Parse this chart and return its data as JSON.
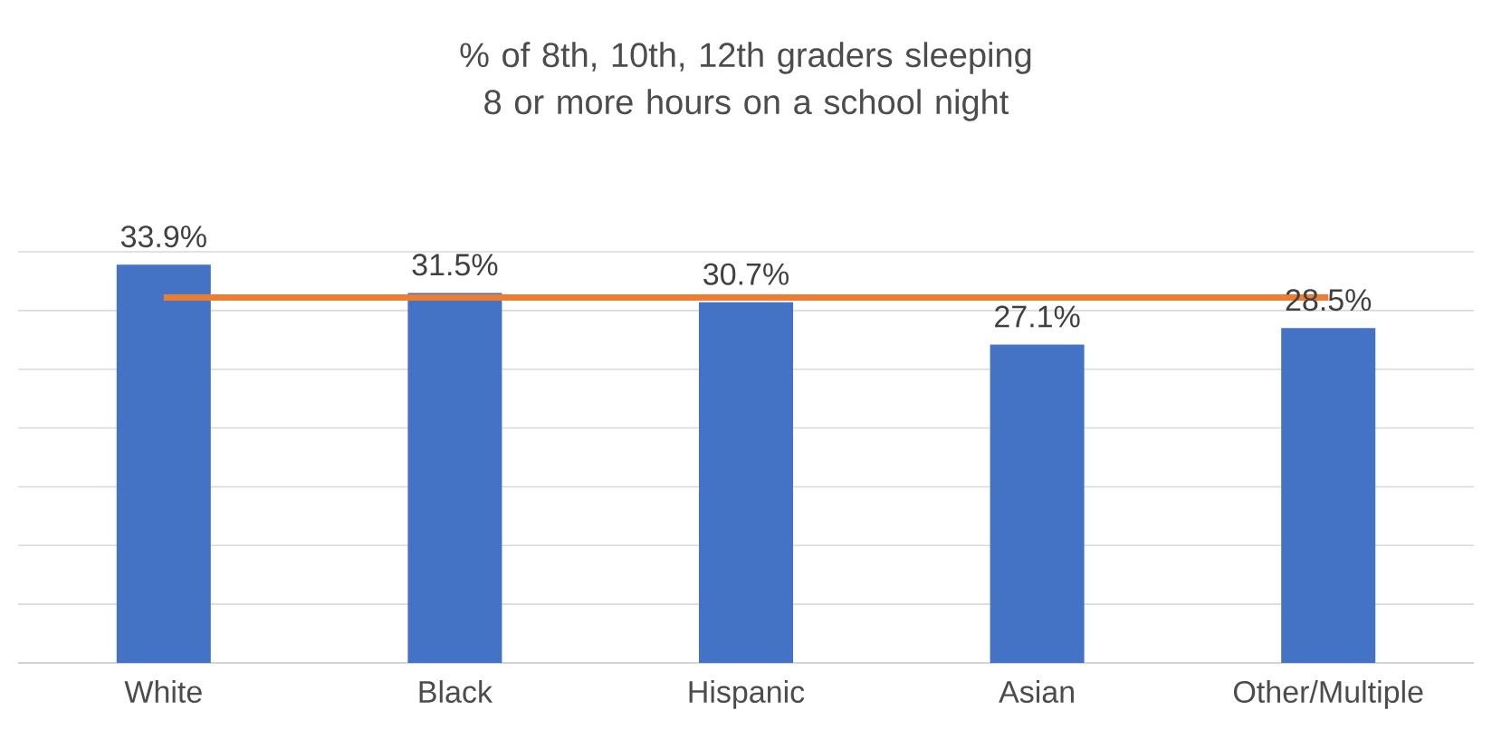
{
  "chart_data": {
    "type": "bar",
    "title": "% of 8th, 10th, 12th graders sleeping 8 or more hours on a school night",
    "categories": [
      "White",
      "Black",
      "Hispanic",
      "Asian",
      "Other/Multiple"
    ],
    "series": [
      {
        "color": "#4472c4",
        "values": [
          33.9,
          31.5,
          30.7,
          27.1,
          28.5
        ],
        "value_labels": [
          "33.9%",
          "31.5%",
          "30.7%",
          "27.1%",
          "28.5%"
        ]
      },
      {
        "type": "line",
        "color": "#ed7d31",
        "values": [
          31.1,
          31.1,
          31.1,
          31.1,
          31.1
        ]
      }
    ],
    "ylim": [
      0,
      35
    ],
    "yticks": [
      {
        "value": 0,
        "label": null
      },
      {
        "value": 5,
        "label": null
      },
      {
        "value": 10,
        "label": null
      },
      {
        "value": 15,
        "label": null
      },
      {
        "value": 20,
        "label": null
      },
      {
        "value": 25,
        "label": null
      },
      {
        "value": 30,
        "label": null
      },
      {
        "value": 35,
        "label": null
      }
    ],
    "grid": "y",
    "tick_labels": "x",
    "legend": false,
    "marker": "none",
    "line_style": "solid"
  }
}
